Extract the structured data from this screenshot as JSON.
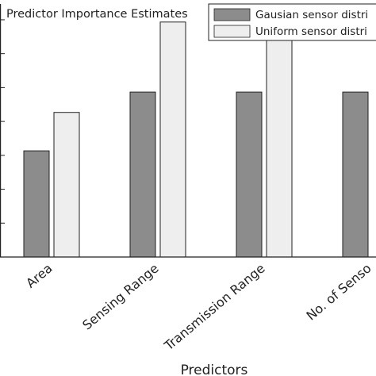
{
  "chart_data": {
    "type": "bar",
    "title": "Predictor Importance Estimates",
    "xlabel": "Predictors",
    "ylabel": "",
    "categories": [
      "Area",
      "Sensing Range",
      "Transmission Range",
      "No. of Sensors"
    ],
    "category_labels_visible": [
      "Area",
      "Sensing Range",
      "Transmission Range",
      "No. of Senso"
    ],
    "series": [
      {
        "name": "Gausian sensor distri",
        "color": "#8c8c8c",
        "values": [
          2.35,
          3.65,
          3.65,
          3.65
        ]
      },
      {
        "name": "Uniform sensor distri",
        "color": "#eeeeee",
        "values": [
          3.2,
          5.2,
          5.2,
          null
        ]
      }
    ],
    "ylim": [
      0,
      5.6
    ],
    "y_tick_step": 0.75,
    "grid": false,
    "legend_position": "top-right"
  }
}
